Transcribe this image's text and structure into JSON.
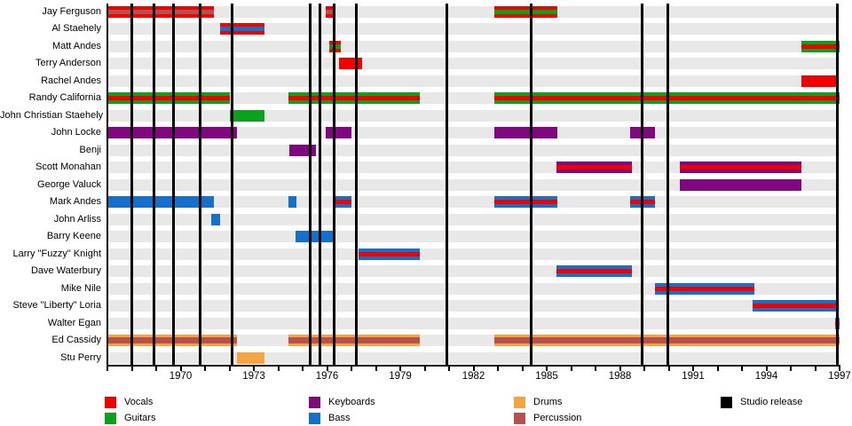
{
  "colors": {
    "vocals": "#f20000",
    "guitars": "#0ca11c",
    "keyboards": "#80087f",
    "bass": "#1470ca",
    "drums": "#f4a440",
    "percussion": "#b85050",
    "release": "#000000",
    "row_band": "#e8e8e8"
  },
  "chart_data": {
    "type": "timeline",
    "description": "Band membership timeline: colored bars show each member's tenure and roles; black vertical lines mark studio releases.",
    "x_axis": {
      "min": 1967,
      "max": 1997,
      "minor_tick_every_years": 1,
      "labeled_ticks": [
        1970,
        1973,
        1976,
        1979,
        1982,
        1985,
        1988,
        1991,
        1994,
        1997
      ]
    },
    "members": [
      {
        "name": "Jay Ferguson",
        "stints": [
          {
            "start": 1967.0,
            "end": 1971.35,
            "roles": [
              "vocals",
              "percussion"
            ]
          },
          {
            "start": 1975.95,
            "end": 1976.25,
            "roles": [
              "vocals",
              "percussion"
            ]
          },
          {
            "start": 1982.85,
            "end": 1985.45,
            "roles": [
              "vocals",
              "guitars"
            ]
          }
        ]
      },
      {
        "name": "Al Staehely",
        "stints": [
          {
            "start": 1971.6,
            "end": 1973.45,
            "roles": [
              "vocals",
              "bass"
            ]
          }
        ]
      },
      {
        "name": "Matt Andes",
        "stints": [
          {
            "start": 1976.1,
            "end": 1976.55,
            "roles": [
              "vocals",
              "guitars"
            ]
          },
          {
            "start": 1995.45,
            "end": 1997.0,
            "roles": [
              "guitars",
              "vocals"
            ]
          }
        ]
      },
      {
        "name": "Terry Anderson",
        "stints": [
          {
            "start": 1976.5,
            "end": 1977.45,
            "roles": [
              "vocals"
            ]
          }
        ]
      },
      {
        "name": "Rachel Andes",
        "stints": [
          {
            "start": 1995.45,
            "end": 1996.95,
            "roles": [
              "vocals"
            ]
          }
        ]
      },
      {
        "name": "Randy California",
        "stints": [
          {
            "start": 1967.0,
            "end": 1972.0,
            "roles": [
              "guitars",
              "vocals"
            ]
          },
          {
            "start": 1974.4,
            "end": 1979.8,
            "roles": [
              "guitars",
              "vocals"
            ]
          },
          {
            "start": 1982.85,
            "end": 1997.0,
            "roles": [
              "guitars",
              "vocals"
            ]
          }
        ]
      },
      {
        "name": "John Christian Staehely",
        "stints": [
          {
            "start": 1972.0,
            "end": 1973.45,
            "roles": [
              "guitars"
            ]
          }
        ]
      },
      {
        "name": "John Locke",
        "stints": [
          {
            "start": 1967.0,
            "end": 1972.3,
            "roles": [
              "keyboards"
            ]
          },
          {
            "start": 1975.95,
            "end": 1977.0,
            "roles": [
              "keyboards"
            ]
          },
          {
            "start": 1982.85,
            "end": 1985.45,
            "roles": [
              "keyboards"
            ]
          },
          {
            "start": 1988.4,
            "end": 1989.45,
            "roles": [
              "keyboards"
            ]
          }
        ]
      },
      {
        "name": "Benji",
        "stints": [
          {
            "start": 1974.45,
            "end": 1975.55,
            "roles": [
              "keyboards"
            ]
          }
        ]
      },
      {
        "name": "Scott Monahan",
        "stints": [
          {
            "start": 1985.4,
            "end": 1988.5,
            "roles": [
              "keyboards",
              "vocals"
            ]
          },
          {
            "start": 1990.45,
            "end": 1995.45,
            "roles": [
              "keyboards",
              "vocals"
            ]
          }
        ]
      },
      {
        "name": "George Valuck",
        "stints": [
          {
            "start": 1990.45,
            "end": 1995.45,
            "roles": [
              "keyboards"
            ]
          }
        ]
      },
      {
        "name": "Mark Andes",
        "stints": [
          {
            "start": 1967.0,
            "end": 1971.35,
            "roles": [
              "bass"
            ]
          },
          {
            "start": 1974.4,
            "end": 1974.75,
            "roles": [
              "bass"
            ]
          },
          {
            "start": 1976.3,
            "end": 1977.0,
            "roles": [
              "bass",
              "vocals"
            ]
          },
          {
            "start": 1982.85,
            "end": 1985.45,
            "roles": [
              "bass",
              "vocals"
            ]
          },
          {
            "start": 1988.4,
            "end": 1989.45,
            "roles": [
              "bass",
              "vocals"
            ]
          }
        ]
      },
      {
        "name": "John Arliss",
        "stints": [
          {
            "start": 1971.25,
            "end": 1971.6,
            "roles": [
              "bass"
            ]
          }
        ]
      },
      {
        "name": "Barry Keene",
        "stints": [
          {
            "start": 1974.7,
            "end": 1976.3,
            "roles": [
              "bass"
            ]
          }
        ]
      },
      {
        "name": "Larry \"Fuzzy\" Knight",
        "stints": [
          {
            "start": 1977.3,
            "end": 1979.8,
            "roles": [
              "bass",
              "vocals"
            ]
          }
        ]
      },
      {
        "name": "Dave Waterbury",
        "stints": [
          {
            "start": 1985.4,
            "end": 1988.5,
            "roles": [
              "bass",
              "vocals"
            ]
          }
        ]
      },
      {
        "name": "Mike Nile",
        "stints": [
          {
            "start": 1989.45,
            "end": 1993.5,
            "roles": [
              "bass",
              "vocals"
            ]
          }
        ]
      },
      {
        "name": "Steve \"Liberty\" Loria",
        "stints": [
          {
            "start": 1993.45,
            "end": 1996.9,
            "roles": [
              "bass",
              "vocals"
            ]
          }
        ]
      },
      {
        "name": "Walter Egan",
        "stints": [
          {
            "start": 1996.8,
            "end": 1997.0,
            "roles": [
              "bass",
              "vocals"
            ]
          }
        ]
      },
      {
        "name": "Ed Cassidy",
        "stints": [
          {
            "start": 1967.0,
            "end": 1972.3,
            "roles": [
              "drums",
              "percussion"
            ]
          },
          {
            "start": 1974.4,
            "end": 1979.8,
            "roles": [
              "drums",
              "percussion"
            ]
          },
          {
            "start": 1982.85,
            "end": 1997.0,
            "roles": [
              "drums",
              "percussion"
            ]
          }
        ]
      },
      {
        "name": "Stu Perry",
        "stints": [
          {
            "start": 1972.3,
            "end": 1973.45,
            "roles": [
              "drums"
            ]
          }
        ]
      }
    ],
    "studio_releases": [
      1968.0,
      1968.9,
      1969.7,
      1970.8,
      1972.1,
      1975.3,
      1975.7,
      1976.3,
      1977.2,
      1980.9,
      1984.35,
      1988.9,
      1989.95,
      1996.9
    ],
    "legend_columns": [
      [
        {
          "label": "Vocals",
          "role": "vocals"
        },
        {
          "label": "Guitars",
          "role": "guitars"
        }
      ],
      [
        {
          "label": "Keyboards",
          "role": "keyboards"
        },
        {
          "label": "Bass",
          "role": "bass"
        }
      ],
      [
        {
          "label": "Drums",
          "role": "drums"
        },
        {
          "label": "Percussion",
          "role": "percussion"
        }
      ],
      [
        {
          "label": "Studio release",
          "role": "release"
        }
      ]
    ]
  }
}
